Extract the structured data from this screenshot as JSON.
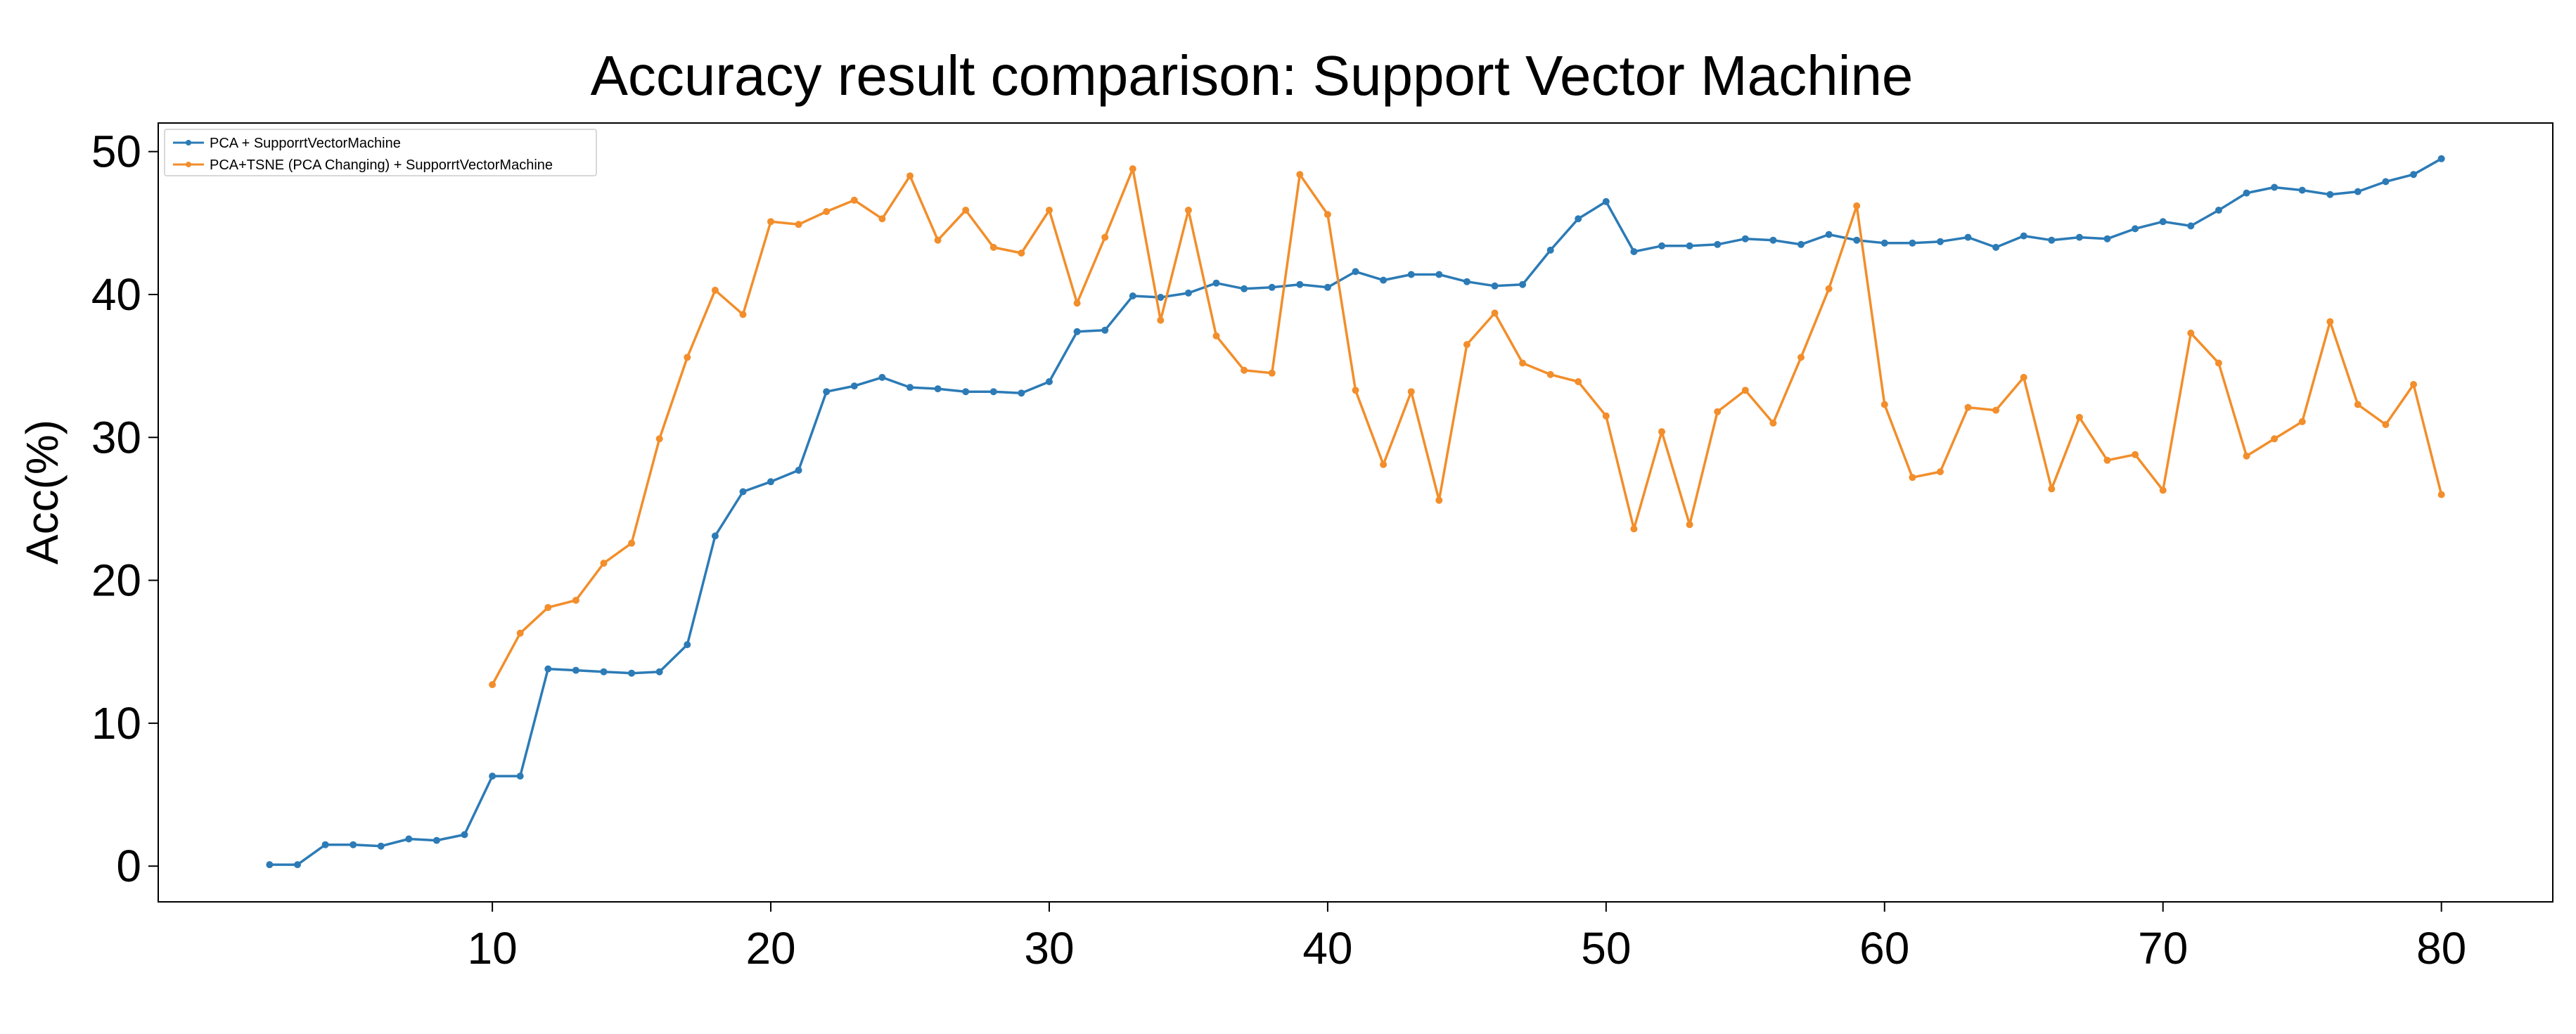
{
  "chart_data": {
    "type": "line",
    "title": "Accuracy result comparison: Support Vector Machine",
    "xlabel": "",
    "ylabel": "Acc(%)",
    "xlim": [
      -2,
      84
    ],
    "ylim": [
      -2.5,
      52
    ],
    "xticks": [
      10,
      20,
      30,
      40,
      50,
      60,
      70,
      80
    ],
    "yticks": [
      0,
      10,
      20,
      30,
      40,
      50
    ],
    "grid": false,
    "legend_position": "top-left",
    "series": [
      {
        "name": "PCA + SupporrtVectorMachine",
        "color": "#2c7bb6",
        "x": [
          2,
          3,
          4,
          5,
          6,
          7,
          8,
          9,
          10,
          11,
          12,
          13,
          14,
          15,
          16,
          17,
          18,
          19,
          20,
          21,
          22,
          23,
          24,
          25,
          26,
          27,
          28,
          29,
          30,
          31,
          32,
          33,
          34,
          35,
          36,
          37,
          38,
          39,
          40,
          41,
          42,
          43,
          44,
          45,
          46,
          47,
          48,
          49,
          50,
          51,
          52,
          53,
          54,
          55,
          56,
          57,
          58,
          59,
          60,
          61,
          62,
          63,
          64,
          65,
          66,
          67,
          68,
          69,
          70,
          71,
          72,
          73,
          74,
          75,
          76,
          77,
          78,
          79,
          80
        ],
        "y": [
          0.1,
          0.1,
          1.5,
          1.5,
          1.4,
          1.9,
          1.8,
          2.2,
          6.3,
          6.3,
          13.8,
          13.7,
          13.6,
          13.5,
          13.6,
          15.5,
          23.1,
          26.2,
          26.9,
          27.7,
          33.2,
          33.6,
          34.2,
          33.5,
          33.4,
          33.2,
          33.2,
          33.1,
          33.9,
          37.4,
          37.5,
          39.9,
          39.8,
          40.1,
          40.8,
          40.4,
          40.5,
          40.7,
          40.5,
          41.6,
          41.0,
          41.4,
          41.4,
          40.9,
          40.6,
          40.7,
          43.1,
          45.3,
          46.5,
          43.0,
          43.4,
          43.4,
          43.5,
          43.9,
          43.8,
          43.5,
          44.2,
          43.8,
          43.6,
          43.6,
          43.7,
          44.0,
          43.3,
          44.1,
          43.8,
          44.0,
          43.9,
          44.6,
          45.1,
          44.8,
          45.9,
          47.1,
          47.5,
          47.3,
          47.0,
          47.2,
          47.9,
          48.4,
          49.5
        ]
      },
      {
        "name": "PCA+TSNE (PCA Changing) + SupporrtVectorMachine",
        "color": "#f28e2b",
        "x": [
          10,
          11,
          12,
          13,
          14,
          15,
          16,
          17,
          18,
          19,
          20,
          21,
          22,
          23,
          24,
          25,
          26,
          27,
          28,
          29,
          30,
          31,
          32,
          33,
          34,
          35,
          36,
          37,
          38,
          39,
          40,
          41,
          42,
          43,
          44,
          45,
          46,
          47,
          48,
          49,
          50,
          51,
          52,
          53,
          54,
          55,
          56,
          57,
          58,
          59,
          60,
          61,
          62,
          63,
          64,
          65,
          66,
          67,
          68,
          69,
          70,
          71,
          72,
          73,
          74,
          75,
          76,
          77,
          78,
          79,
          80
        ],
        "y": [
          12.7,
          16.3,
          18.1,
          18.6,
          21.2,
          22.6,
          29.9,
          35.6,
          40.3,
          38.6,
          45.1,
          44.9,
          45.8,
          46.6,
          45.3,
          48.3,
          43.8,
          45.9,
          43.3,
          42.9,
          45.9,
          39.4,
          44.0,
          48.8,
          38.2,
          45.9,
          37.1,
          34.7,
          34.5,
          48.4,
          45.6,
          33.3,
          28.1,
          33.2,
          25.6,
          36.5,
          38.7,
          35.2,
          34.4,
          33.9,
          31.5,
          23.6,
          30.4,
          23.9,
          31.8,
          33.3,
          31.0,
          35.6,
          40.4,
          46.2,
          32.3,
          27.2,
          27.6,
          32.1,
          31.9,
          34.2,
          26.4,
          31.4,
          28.4,
          28.8,
          26.3,
          37.3,
          35.2,
          28.7,
          29.9,
          31.1,
          38.1,
          32.3,
          30.9,
          33.7,
          26.0
        ]
      }
    ]
  }
}
